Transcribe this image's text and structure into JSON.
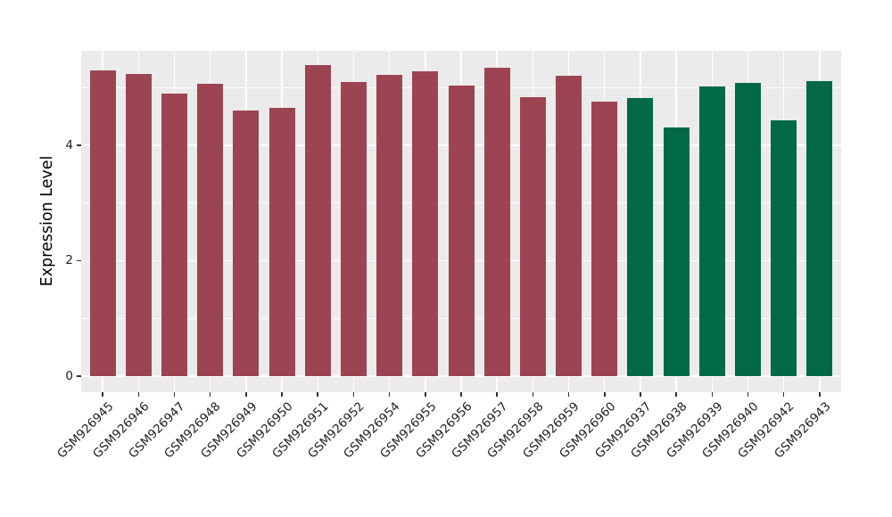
{
  "chart_data": {
    "type": "bar",
    "title": "",
    "xlabel": "",
    "ylabel": "Expression Level",
    "legend_position": "none",
    "grid": "major-and-minor horizontal white lines, vertical white lines at category centers, gray panel",
    "panel_bg": "#EBEBEB",
    "grid_color": "#FFFFFF",
    "palette": {
      "maroon": "#9C4452",
      "green": "#026946"
    },
    "yticks": [
      0,
      2,
      4
    ],
    "ylim": [
      -0.283,
      5.645
    ],
    "categories": [
      "GSM926945",
      "GSM926946",
      "GSM926947",
      "GSM926948",
      "GSM926949",
      "GSM926950",
      "GSM926951",
      "GSM926952",
      "GSM926954",
      "GSM926955",
      "GSM926956",
      "GSM926957",
      "GSM926958",
      "GSM926959",
      "GSM926960",
      "GSM926937",
      "GSM926938",
      "GSM926939",
      "GSM926940",
      "GSM926942",
      "GSM926943"
    ],
    "values": [
      5.3,
      5.25,
      4.9,
      5.07,
      4.61,
      4.66,
      5.4,
      5.1,
      5.23,
      5.29,
      5.04,
      5.35,
      4.84,
      5.21,
      4.76,
      4.82,
      4.31,
      5.02,
      5.09,
      4.43,
      5.12
    ],
    "bar_groups": [
      "maroon",
      "maroon",
      "maroon",
      "maroon",
      "maroon",
      "maroon",
      "maroon",
      "maroon",
      "maroon",
      "maroon",
      "maroon",
      "maroon",
      "maroon",
      "maroon",
      "maroon",
      "green",
      "green",
      "green",
      "green",
      "green",
      "green"
    ]
  }
}
